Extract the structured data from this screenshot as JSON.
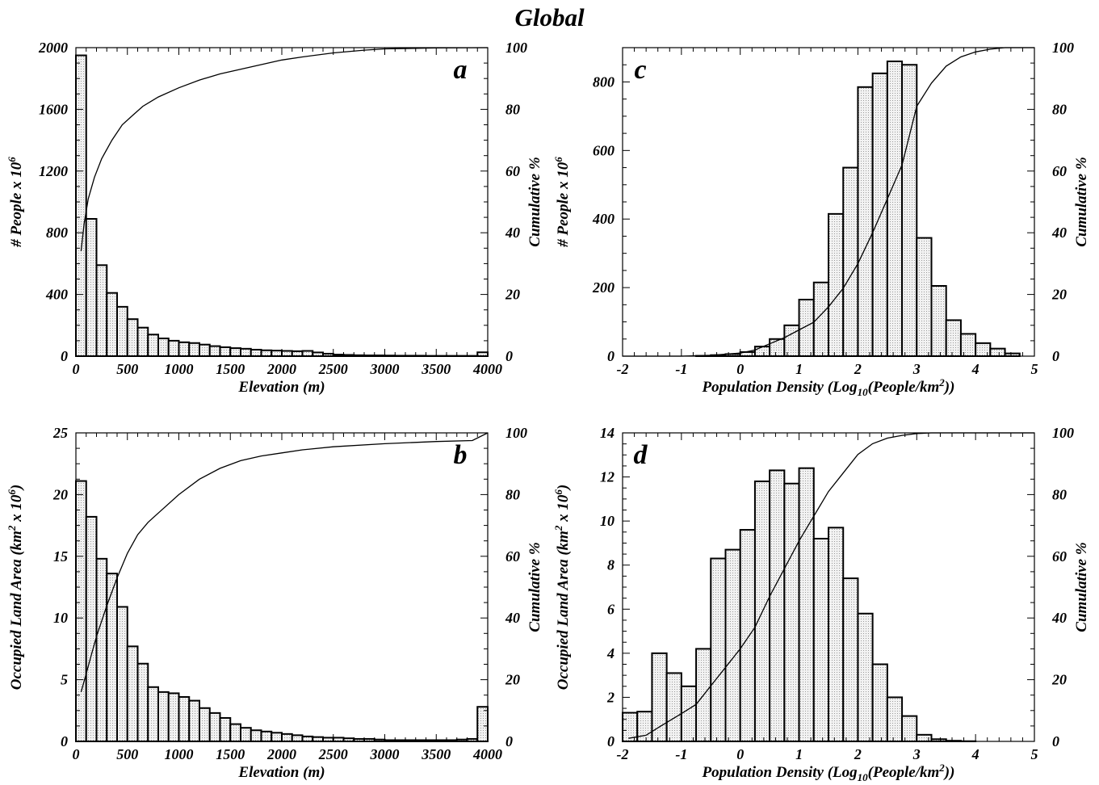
{
  "title": "Global",
  "chart_data": [
    {
      "type": "bar",
      "panel_label": "a",
      "xlabel": "Elevation (m)",
      "ylabel": "# People x 10⁶",
      "y2label": "Cumulative %",
      "bin_width": 100,
      "xlim": [
        0,
        4000
      ],
      "ylim": [
        0,
        2000
      ],
      "y2lim": [
        0,
        100
      ],
      "xticks": [
        0,
        500,
        1000,
        1500,
        2000,
        2500,
        3000,
        3500,
        4000
      ],
      "yticks": [
        0,
        400,
        800,
        1200,
        1600,
        2000
      ],
      "y2ticks": [
        0,
        20,
        40,
        60,
        80,
        100
      ],
      "x": [
        0,
        100,
        200,
        300,
        400,
        500,
        600,
        700,
        800,
        900,
        1000,
        1100,
        1200,
        1300,
        1400,
        1500,
        1600,
        1700,
        1800,
        1900,
        2000,
        2100,
        2200,
        2300,
        2400,
        2500,
        2600,
        2700,
        2800,
        2900,
        3000,
        3100,
        3200,
        3300,
        3400,
        3500,
        3600,
        3700,
        3800,
        3900
      ],
      "values": [
        1950,
        890,
        590,
        410,
        320,
        240,
        185,
        140,
        115,
        100,
        90,
        85,
        75,
        65,
        58,
        52,
        48,
        42,
        38,
        36,
        34,
        32,
        34,
        24,
        16,
        10,
        8,
        6,
        5,
        5,
        4,
        3,
        3,
        3,
        2,
        2,
        2,
        2,
        2,
        25
      ],
      "cumulative": {
        "x": [
          50,
          80,
          120,
          180,
          250,
          350,
          450,
          550,
          650,
          800,
          1000,
          1200,
          1400,
          1600,
          1800,
          2000,
          2200,
          2500,
          2800,
          3000,
          3500,
          4000
        ],
        "y": [
          34,
          43,
          51,
          58,
          64,
          70,
          75,
          78,
          81,
          84,
          87,
          89.5,
          91.5,
          93,
          94.5,
          96,
          97,
          98.3,
          99.2,
          99.6,
          99.9,
          100
        ]
      }
    },
    {
      "type": "bar",
      "panel_label": "b",
      "xlabel": "Elevation (m)",
      "ylabel": "Occupied Land Area (km² x 10⁶)",
      "y2label": "Cumulative %",
      "bin_width": 100,
      "xlim": [
        0,
        4000
      ],
      "ylim": [
        0,
        25
      ],
      "y2lim": [
        0,
        100
      ],
      "xticks": [
        0,
        500,
        1000,
        1500,
        2000,
        2500,
        3000,
        3500,
        4000
      ],
      "yticks": [
        0,
        5,
        10,
        15,
        20,
        25
      ],
      "y2ticks": [
        0,
        20,
        40,
        60,
        80,
        100
      ],
      "x": [
        0,
        100,
        200,
        300,
        400,
        500,
        600,
        700,
        800,
        900,
        1000,
        1100,
        1200,
        1300,
        1400,
        1500,
        1600,
        1700,
        1800,
        1900,
        2000,
        2100,
        2200,
        2300,
        2400,
        2500,
        2600,
        2700,
        2800,
        2900,
        3000,
        3100,
        3200,
        3300,
        3400,
        3500,
        3600,
        3700,
        3800,
        3900
      ],
      "values": [
        21.1,
        18.2,
        14.8,
        13.6,
        10.9,
        7.7,
        6.3,
        4.4,
        4.0,
        3.9,
        3.6,
        3.3,
        2.7,
        2.3,
        1.9,
        1.4,
        1.1,
        0.9,
        0.8,
        0.7,
        0.6,
        0.5,
        0.4,
        0.35,
        0.3,
        0.3,
        0.25,
        0.2,
        0.2,
        0.15,
        0.1,
        0.1,
        0.1,
        0.1,
        0.1,
        0.1,
        0.1,
        0.15,
        0.2,
        2.8
      ],
      "cumulative": {
        "x": [
          50,
          100,
          150,
          200,
          300,
          400,
          500,
          600,
          700,
          800,
          1000,
          1200,
          1400,
          1600,
          1800,
          2000,
          2200,
          2500,
          3000,
          3500,
          3850,
          4000
        ],
        "y": [
          16,
          22,
          28,
          34,
          44,
          53,
          61,
          67,
          71,
          74,
          80,
          85,
          88.5,
          91,
          92.5,
          93.5,
          94.5,
          95.5,
          96.5,
          97.2,
          97.5,
          100
        ]
      }
    },
    {
      "type": "bar",
      "panel_label": "c",
      "xlabel": "Population Density (Log₁₀(People/km²))",
      "ylabel": "# People x 10⁶",
      "y2label": "Cumulative %",
      "bin_width": 0.25,
      "xlim": [
        -2,
        5
      ],
      "ylim": [
        0,
        900
      ],
      "y2lim": [
        0,
        100
      ],
      "xticks": [
        -2,
        -1,
        0,
        1,
        2,
        3,
        4,
        5
      ],
      "yticks": [
        0,
        200,
        400,
        600,
        800
      ],
      "y2ticks": [
        0,
        20,
        40,
        60,
        80,
        100
      ],
      "x": [
        -2,
        -1.75,
        -1.5,
        -1.25,
        -1,
        -0.75,
        -0.5,
        -0.25,
        0,
        0.25,
        0.5,
        0.75,
        1,
        1.25,
        1.5,
        1.75,
        2,
        2.25,
        2.5,
        2.75,
        3,
        3.25,
        3.5,
        3.75,
        4,
        4.25,
        4.5
      ],
      "values": [
        0,
        0,
        0,
        0,
        0,
        1,
        3,
        6,
        12,
        28,
        50,
        90,
        165,
        215,
        415,
        550,
        785,
        825,
        860,
        850,
        345,
        205,
        105,
        65,
        38,
        22,
        8
      ],
      "cumulative": {
        "x": [
          -2,
          -1,
          -0.5,
          0,
          0.25,
          0.5,
          0.75,
          1,
          1.25,
          1.5,
          1.75,
          2,
          2.25,
          2.5,
          2.75,
          3,
          3.25,
          3.5,
          3.75,
          4,
          4.25,
          4.5,
          5
        ],
        "y": [
          0,
          0,
          0.3,
          1,
          2,
          4,
          6,
          8.5,
          11,
          16,
          22,
          30,
          40,
          51,
          62,
          81,
          88.5,
          94,
          97,
          98.6,
          99.5,
          100,
          100
        ]
      }
    },
    {
      "type": "bar",
      "panel_label": "d",
      "xlabel": "Population Density (Log₁₀(People/km²))",
      "ylabel": "Occupied Land Area (km² x 10⁶)",
      "y2label": "Cumulative %",
      "bin_width": 0.25,
      "xlim": [
        -2,
        5
      ],
      "ylim": [
        0,
        14
      ],
      "y2lim": [
        0,
        100
      ],
      "xticks": [
        -2,
        -1,
        0,
        1,
        2,
        3,
        4,
        5
      ],
      "yticks": [
        0,
        2,
        4,
        6,
        8,
        10,
        12,
        14
      ],
      "y2ticks": [
        0,
        20,
        40,
        60,
        80,
        100
      ],
      "x": [
        -2,
        -1.75,
        -1.5,
        -1.25,
        -1,
        -0.75,
        -0.5,
        -0.25,
        0,
        0.25,
        0.5,
        0.75,
        1,
        1.25,
        1.5,
        1.75,
        2,
        2.25,
        2.5,
        2.75,
        3,
        3.25,
        3.5,
        3.75,
        4,
        4.25,
        4.5
      ],
      "values": [
        1.3,
        1.35,
        4.0,
        3.1,
        2.5,
        4.2,
        8.3,
        8.7,
        9.6,
        11.8,
        12.3,
        11.7,
        12.4,
        9.2,
        9.7,
        7.4,
        5.8,
        3.5,
        2.0,
        1.15,
        0.3,
        0.1,
        0.03,
        0.01,
        0,
        0,
        0
      ],
      "cumulative": {
        "x": [
          -1.9,
          -1.6,
          -1.35,
          -1,
          -0.75,
          -0.5,
          -0.25,
          0,
          0.25,
          0.5,
          0.75,
          1,
          1.25,
          1.5,
          1.75,
          2,
          2.25,
          2.5,
          2.75,
          3,
          3.25,
          3.5,
          4,
          5
        ],
        "y": [
          1,
          2,
          5,
          9,
          12,
          18,
          24,
          30,
          37,
          47,
          56,
          65,
          73,
          81,
          87,
          93,
          96.5,
          98.3,
          99.2,
          99.8,
          100,
          100,
          100,
          100
        ]
      }
    }
  ]
}
